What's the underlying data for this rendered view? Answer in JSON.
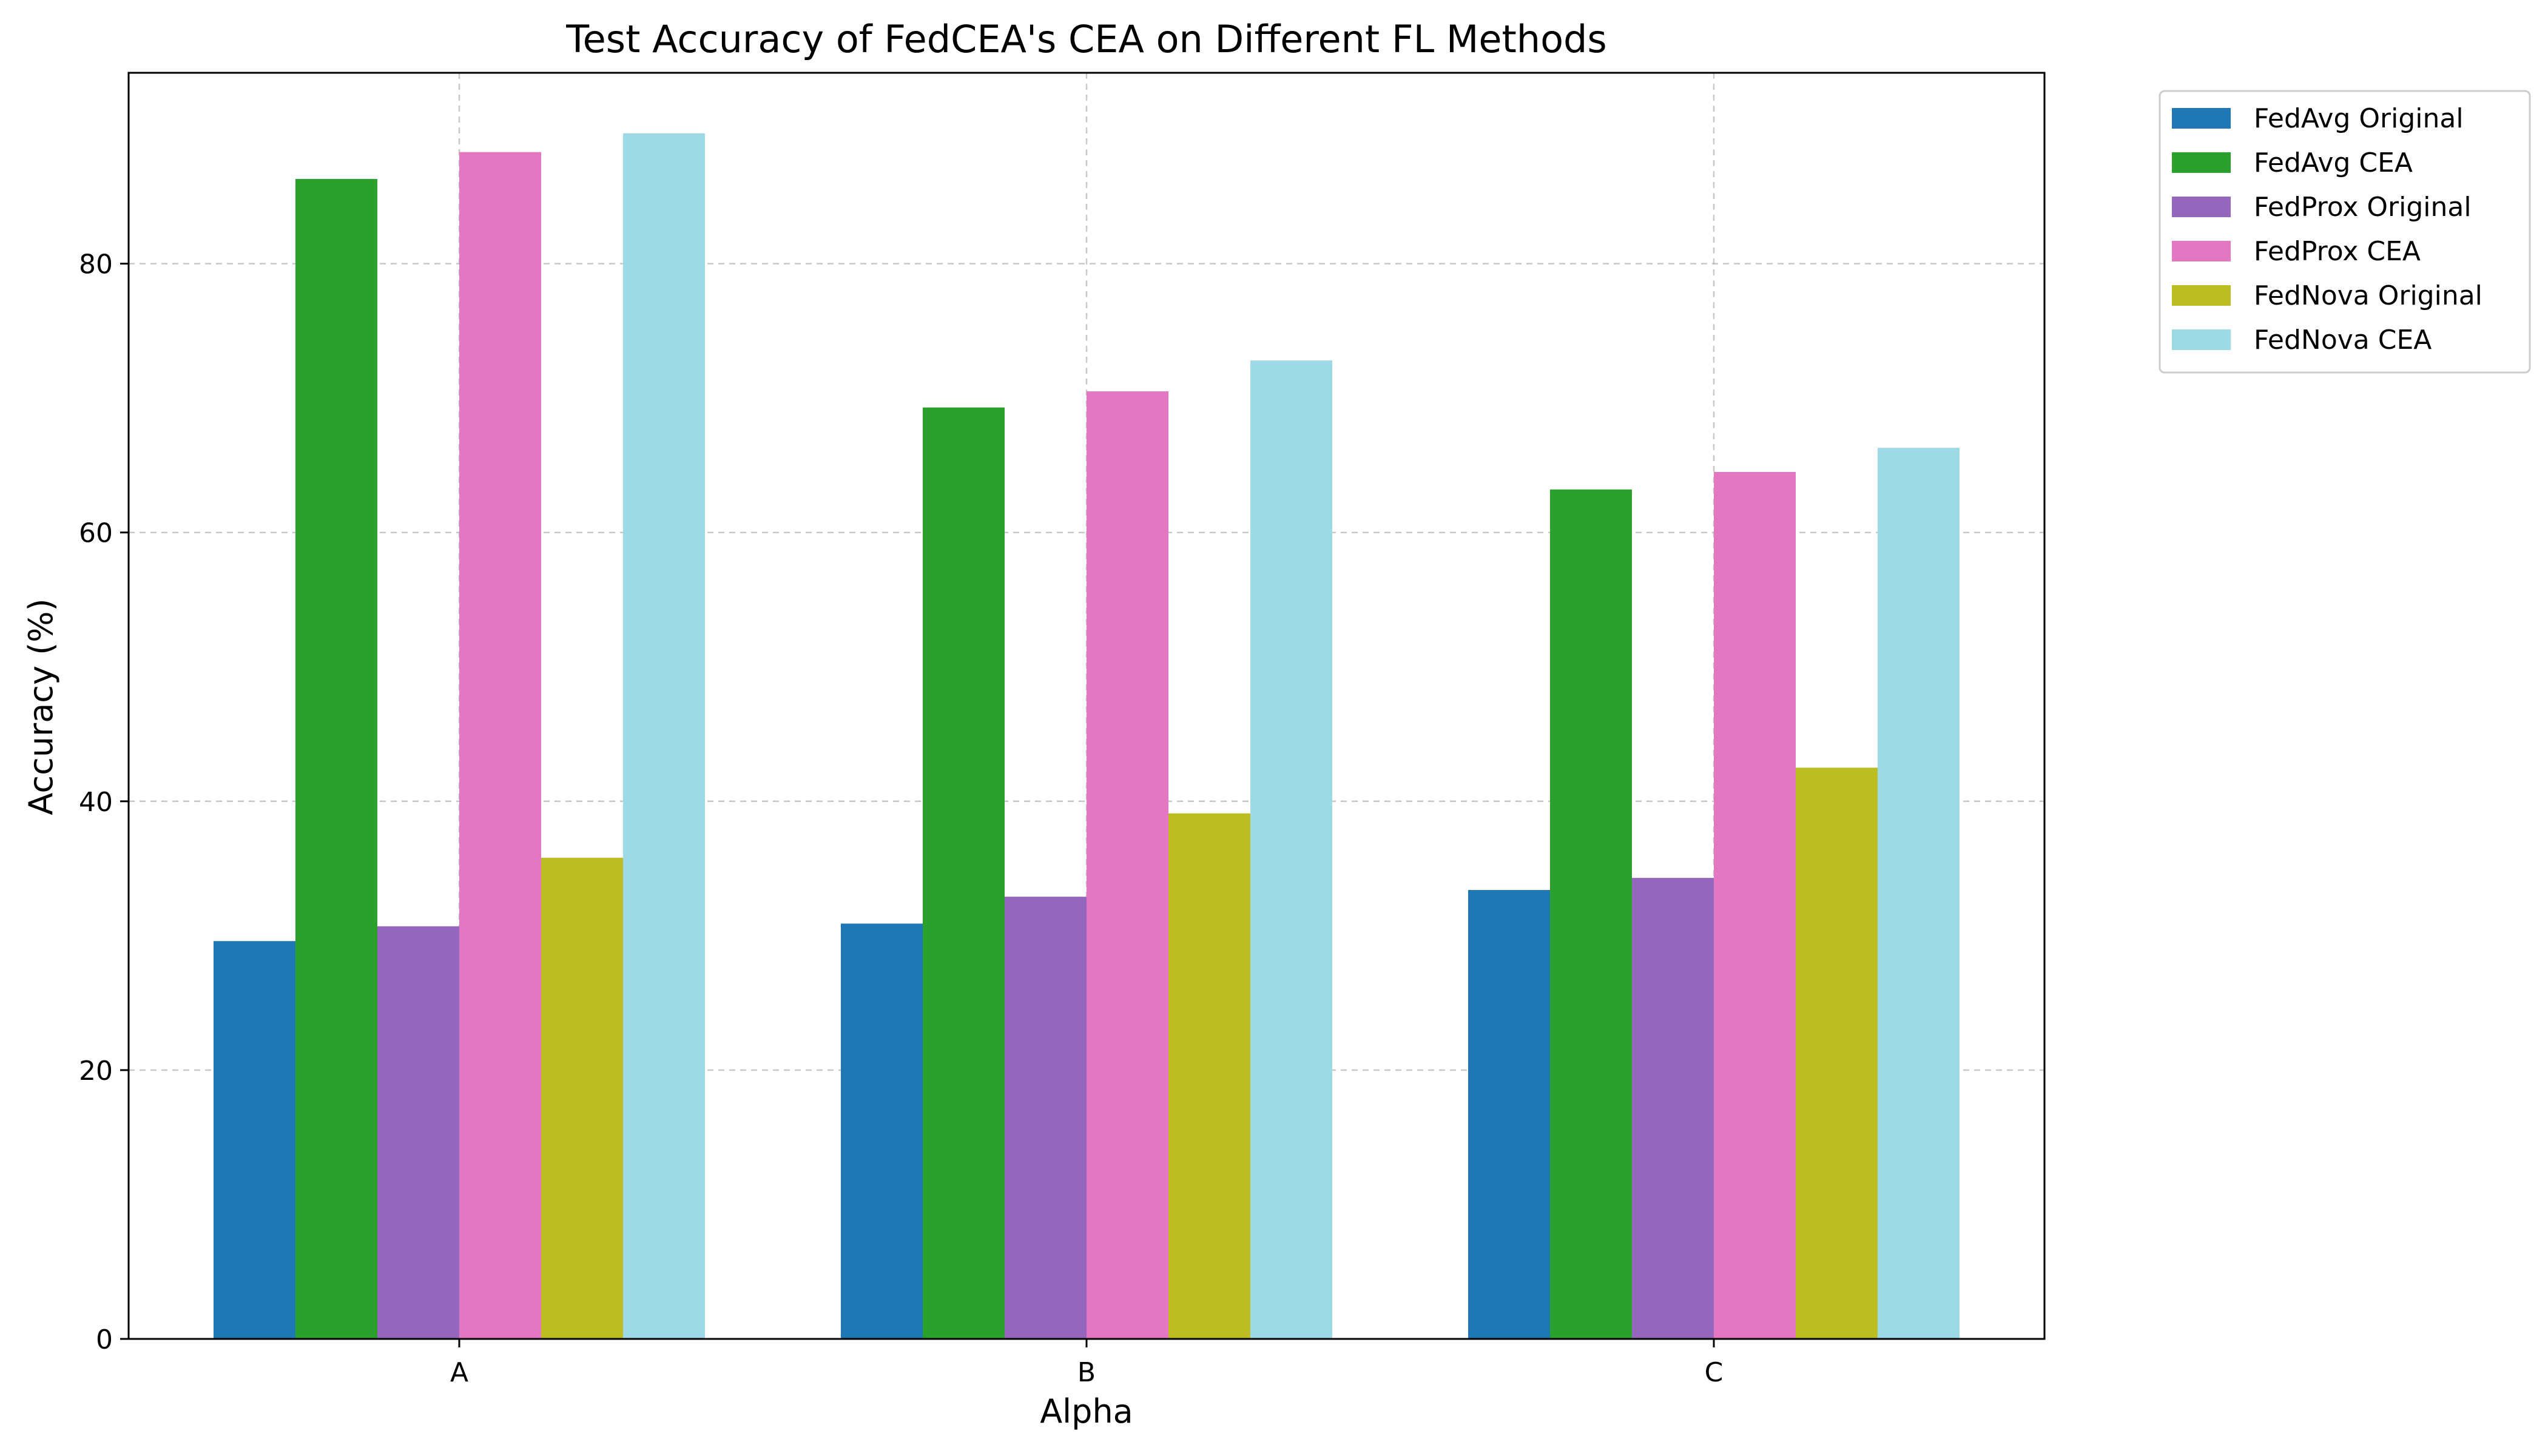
{
  "chart_data": {
    "type": "bar",
    "title": "Test Accuracy of FedCEA's CEA on Different FL Methods",
    "xlabel": "Alpha",
    "ylabel": "Accuracy (%)",
    "categories": [
      "A",
      "B",
      "C"
    ],
    "ylim": [
      0,
      94.2
    ],
    "yticks": [
      0,
      20,
      40,
      60,
      80
    ],
    "grid": true,
    "grid_style": "dashed",
    "legend_position": "outside-top-right",
    "series": [
      {
        "name": "FedAvg Original",
        "color": "#1f77b4",
        "values": [
          29.6,
          30.9,
          33.4
        ]
      },
      {
        "name": "FedAvg CEA",
        "color": "#2ca02c",
        "values": [
          86.3,
          69.3,
          63.2
        ]
      },
      {
        "name": "FedProx Original",
        "color": "#9467bd",
        "values": [
          30.7,
          32.9,
          34.3
        ]
      },
      {
        "name": "FedProx CEA",
        "color": "#e377c2",
        "values": [
          88.3,
          70.5,
          64.5
        ]
      },
      {
        "name": "FedNova Original",
        "color": "#bcbd22",
        "values": [
          35.8,
          39.1,
          42.5
        ]
      },
      {
        "name": "FedNova CEA",
        "color": "#9edae5",
        "values": [
          89.7,
          72.8,
          66.3
        ]
      }
    ]
  }
}
